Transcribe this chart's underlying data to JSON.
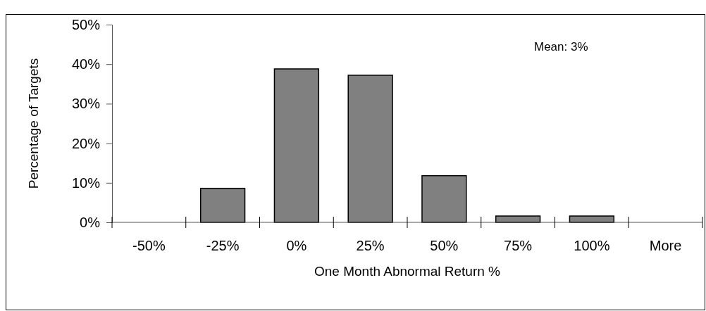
{
  "chart_data": {
    "type": "bar",
    "xlabel": "One Month Abnormal Return %",
    "ylabel": "Percentage of Targets",
    "categories": [
      "-50%",
      "-25%",
      "0%",
      "25%",
      "50%",
      "75%",
      "100%",
      "More"
    ],
    "values": [
      0,
      8.6,
      38.8,
      37.2,
      11.8,
      1.6,
      1.6,
      0
    ],
    "color": "#808080",
    "ylim": [
      0,
      50
    ],
    "yticks": [
      {
        "value": 0,
        "label": "0%"
      },
      {
        "value": 10,
        "label": "10%"
      },
      {
        "value": 20,
        "label": "20%"
      },
      {
        "value": 30,
        "label": "30%"
      },
      {
        "value": 40,
        "label": "40%"
      },
      {
        "value": 50,
        "label": "50%"
      }
    ],
    "annotations": [
      "Mean: 3%"
    ],
    "grid": false
  }
}
